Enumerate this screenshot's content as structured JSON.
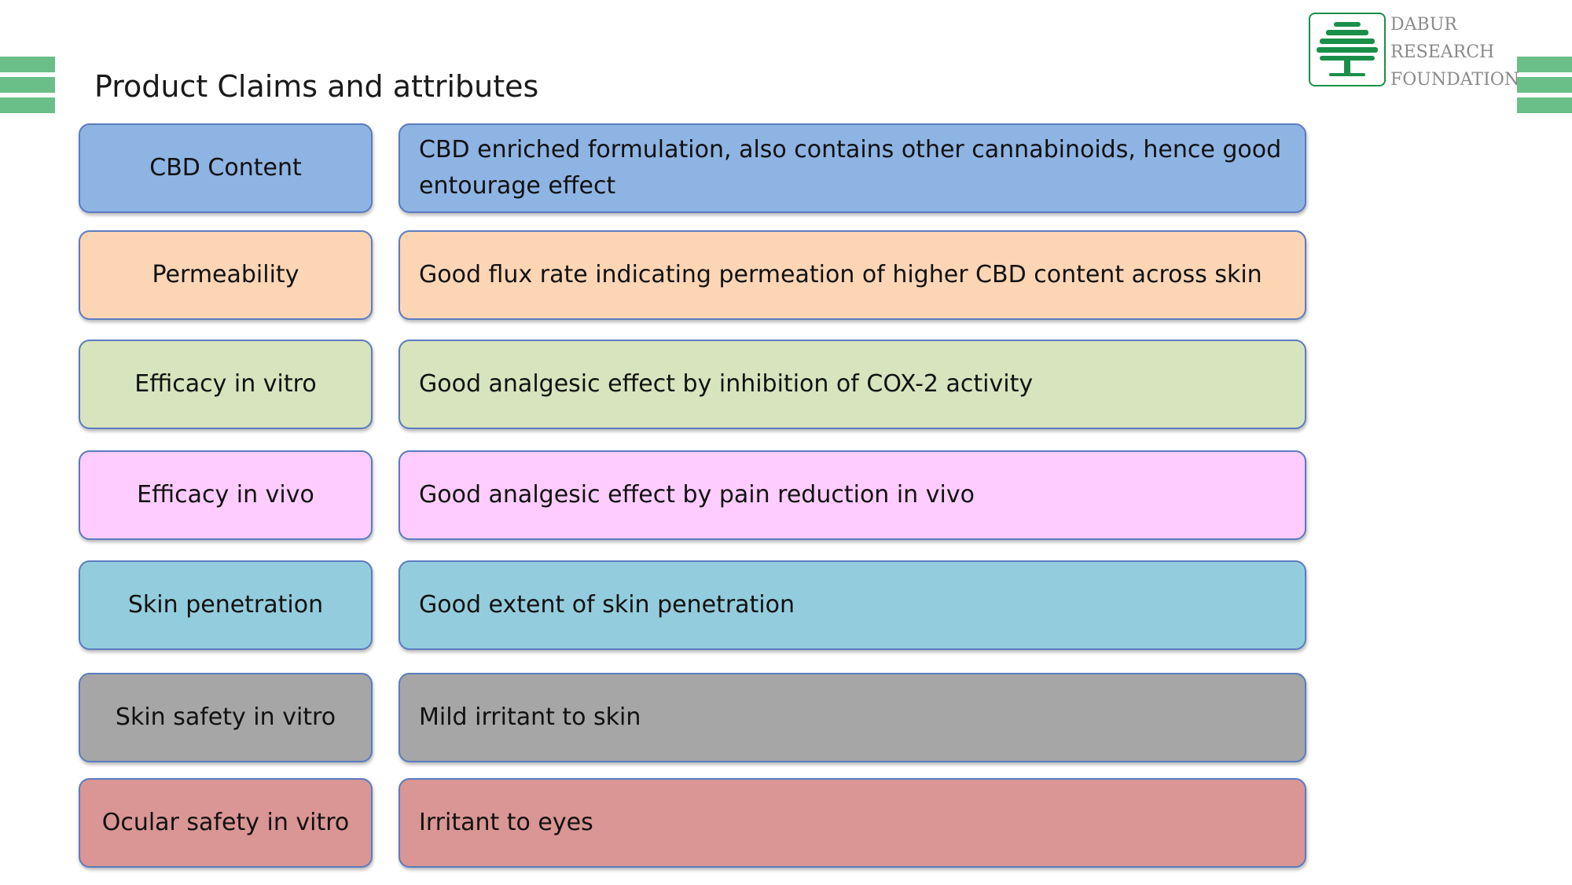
{
  "slide": {
    "title": "Product Claims and attributes"
  },
  "logo": {
    "line1": "DABUR",
    "line2": "RESEARCH",
    "line3": "FOUNDATION",
    "accent_color": "#1a8f4a"
  },
  "decor": {
    "bar_color": "#6abf88"
  },
  "rows": [
    {
      "label": "CBD Content",
      "description": "CBD enriched formulation, also contains other cannabinoids, hence good entourage effect",
      "color": "#8eb4e3"
    },
    {
      "label": "Permeability",
      "description": "Good flux rate indicating permeation of higher CBD content across skin",
      "color": "#fcd5b5"
    },
    {
      "label": "Efficacy in vitro",
      "description": "Good analgesic effect by inhibition of COX-2 activity",
      "color": "#d7e4bd"
    },
    {
      "label": "Efficacy in vivo",
      "description": "Good analgesic effect by pain reduction in vivo",
      "color": "#ffccff"
    },
    {
      "label": "Skin penetration",
      "description": "Good extent of skin penetration",
      "color": "#93cddd"
    },
    {
      "label": "Skin safety in vitro",
      "description": "Mild irritant to skin",
      "color": "#a6a6a6"
    },
    {
      "label": "Ocular safety in vitro",
      "description": "Irritant to eyes",
      "color": "#d99694"
    }
  ]
}
